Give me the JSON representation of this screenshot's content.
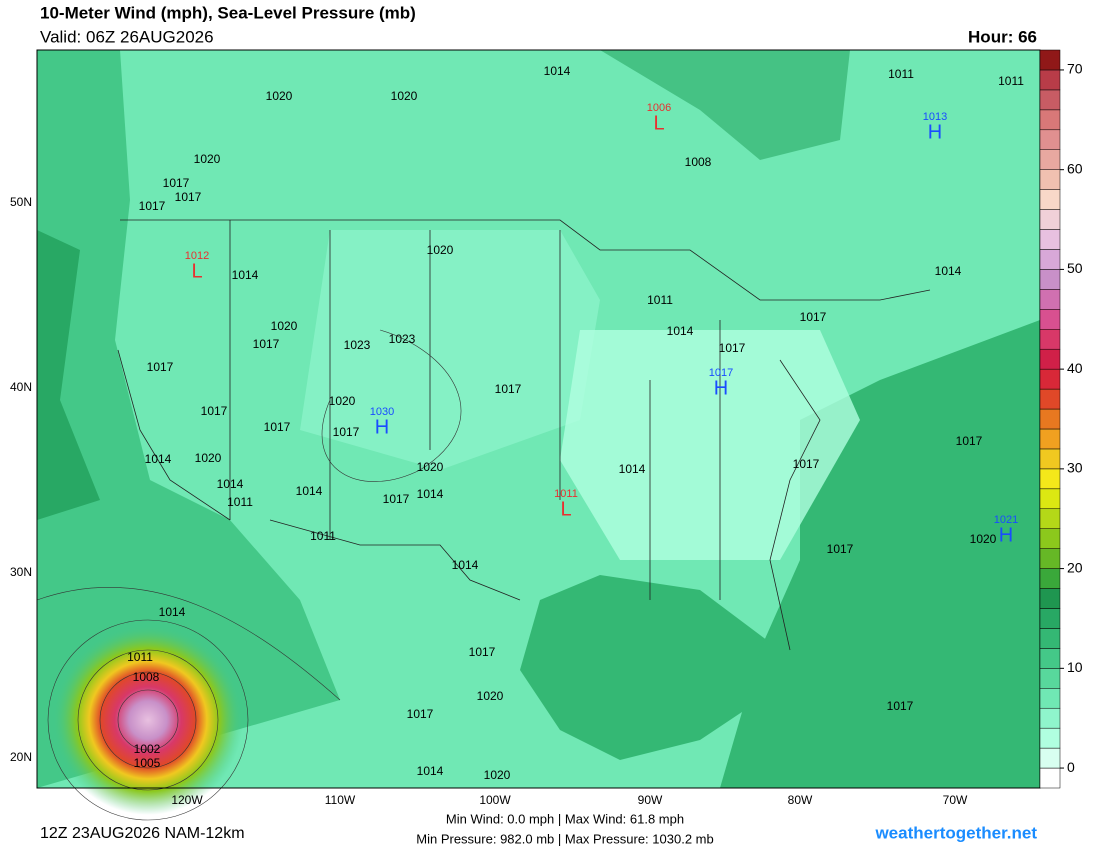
{
  "header": {
    "title": "10-Meter Wind (mph), Sea-Level Pressure (mb)",
    "valid": "Valid: 06Z 26AUG2026",
    "hour": "Hour: 66"
  },
  "footer": {
    "run": "12Z 23AUG2026 NAM-12km",
    "wind_stats": "Min Wind:  0.0 mph | Max Wind: 61.8 mph",
    "pressure_stats": "Min Pressure: 982.0 mb | Max Pressure: 1030.2 mb",
    "site": "weathertogether.net"
  },
  "longitudes": [
    "120W",
    "110W",
    "100W",
    "90W",
    "80W",
    "70W"
  ],
  "latitudes": [
    "50N",
    "40N",
    "30N",
    "20N"
  ],
  "pressure_labels": [
    1014,
    1011,
    1011,
    1020,
    1020,
    1008,
    1020,
    1017,
    1017,
    1017,
    1020,
    1014,
    1014,
    1011,
    1020,
    1014,
    1017,
    1023,
    1023,
    1017,
    1017,
    1017,
    1017,
    1020,
    1017,
    1017,
    1017,
    1017,
    1014,
    1020,
    1020,
    1014,
    1017,
    1014,
    1014,
    1017,
    1014,
    1011,
    1011,
    1020,
    1017,
    1014,
    1014,
    1017,
    1011,
    1008,
    1020,
    1017,
    1017,
    1002,
    1005,
    1014,
    1020
  ],
  "centers": [
    {
      "letter": "L",
      "value": 1006
    },
    {
      "letter": "H",
      "value": 1013
    },
    {
      "letter": "L",
      "value": 1012
    },
    {
      "letter": "H",
      "value": 1030
    },
    {
      "letter": "H",
      "value": 1017
    },
    {
      "letter": "L",
      "value": 1011
    },
    {
      "letter": "H",
      "value": 1021
    }
  ],
  "colorbar": {
    "lim": [
      -2,
      72
    ],
    "ticks": [
      0,
      10,
      20,
      30,
      40,
      50,
      60,
      70
    ],
    "colors": [
      "#ffffff",
      "#d8fff0",
      "#b0ffe0",
      "#8ff5cc",
      "#70e8b4",
      "#58d89c",
      "#44c888",
      "#34b874",
      "#28a864",
      "#1f9650",
      "#3aa83a",
      "#66b826",
      "#8cc81c",
      "#b4d818",
      "#dce812",
      "#f4e81a",
      "#f0c820",
      "#f0a020",
      "#e87820",
      "#e04828",
      "#d82838",
      "#d02048",
      "#d83868",
      "#d85090",
      "#d070b0",
      "#c890c8",
      "#d8a8d8",
      "#e8c0e0",
      "#f0d0d8",
      "#f8d8c8",
      "#f0c0b0",
      "#e8a8a0",
      "#e09090",
      "#d87878",
      "#c85c64",
      "#b83c48",
      "#901818"
    ]
  }
}
